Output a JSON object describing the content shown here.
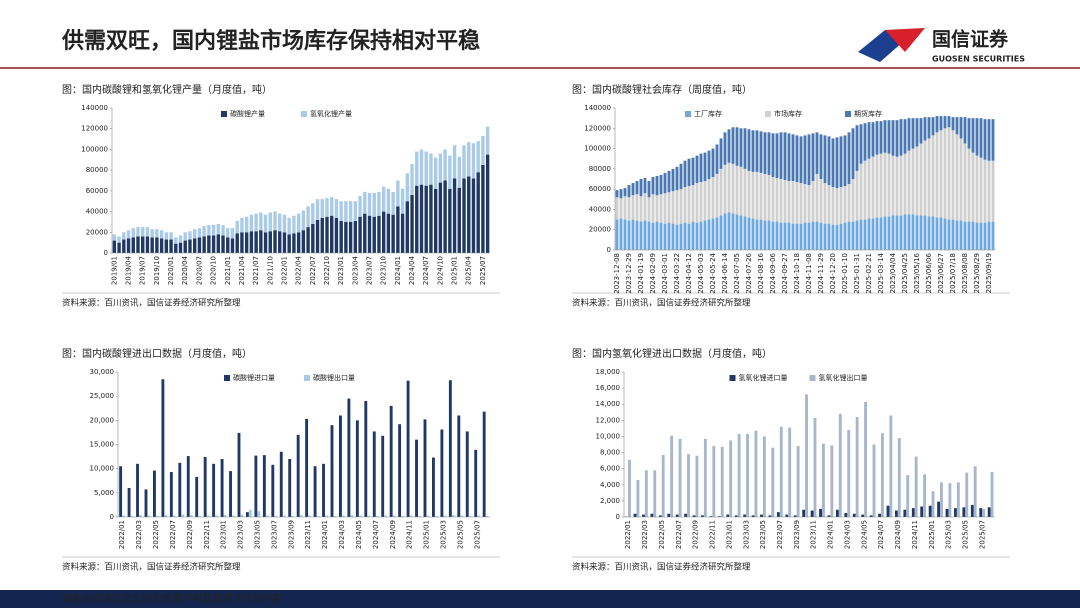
{
  "header": {
    "title": "供需双旺，国内锂盐市场库存保持相对平稳",
    "logo_cn": "国信证券",
    "logo_en": "GUOSEN SECURITIES"
  },
  "footer": {
    "disclaimer": "请务必阅读正文之后的免责声明及其项下所有内容"
  },
  "chart_data": [
    {
      "type": "bar",
      "stacked": true,
      "title": "图：国内碳酸锂和氢氧化锂产量（月度值，吨）",
      "source": "资料来源：百川资讯，国信证券经济研究所整理",
      "legend": "top",
      "categories": [
        "2019/01",
        null,
        null,
        "2019/04",
        null,
        null,
        "2019/07",
        null,
        null,
        "2019/10",
        null,
        null,
        "2020/01",
        null,
        null,
        "2020/04",
        null,
        null,
        "2020/07",
        null,
        null,
        "2020/10",
        null,
        null,
        "2021/01",
        null,
        null,
        "2021/04",
        null,
        null,
        "2021/07",
        null,
        null,
        "2021/10",
        null,
        null,
        "2022/01",
        null,
        null,
        "2022/04",
        null,
        null,
        "2022/07",
        null,
        null,
        "2022/10",
        null,
        null,
        "2023/01",
        null,
        null,
        "2023/04",
        null,
        null,
        "2023/07",
        null,
        null,
        "2023/10",
        null,
        null,
        "2024/01",
        null,
        null,
        "2024/04",
        null,
        null,
        "2024/07",
        null,
        null,
        "2024/10",
        null,
        null,
        "2025/01",
        null,
        null,
        "2025/04",
        null,
        null,
        "2025/07",
        null
      ],
      "series": [
        {
          "name": "碳酸锂产量",
          "color": "#1f3864",
          "values": [
            12000,
            10000,
            13000,
            14000,
            15000,
            16000,
            16000,
            16000,
            15000,
            15000,
            14000,
            13000,
            13000,
            9000,
            10000,
            12000,
            13000,
            14000,
            15000,
            16000,
            17000,
            17000,
            18000,
            17000,
            15000,
            14000,
            19000,
            20000,
            20000,
            21000,
            21000,
            22000,
            20000,
            21000,
            22000,
            21000,
            20000,
            18000,
            19000,
            20000,
            22000,
            25000,
            28000,
            32000,
            34000,
            35000,
            36000,
            34000,
            31000,
            30000,
            30000,
            31000,
            35000,
            38000,
            36000,
            35000,
            36000,
            40000,
            38000,
            37000,
            45000,
            38000,
            50000,
            56000,
            65000,
            66000,
            65000,
            66000,
            62000,
            68000,
            70000,
            62000,
            72000,
            63000,
            72000,
            74000,
            72000,
            78000,
            85000,
            95000
          ]
        },
        {
          "name": "氢氧化锂产量",
          "color": "#a9cbe8",
          "values": [
            6000,
            6000,
            7000,
            8000,
            9000,
            9000,
            9000,
            9000,
            8000,
            8000,
            8000,
            7000,
            7000,
            6000,
            7000,
            8000,
            8000,
            9000,
            9000,
            10000,
            10000,
            10000,
            10000,
            10000,
            9000,
            10000,
            12000,
            14000,
            15000,
            16000,
            17000,
            17000,
            17000,
            18000,
            18000,
            17000,
            17000,
            16000,
            17000,
            18000,
            19000,
            20000,
            20000,
            20000,
            18000,
            18000,
            18000,
            18000,
            19000,
            20000,
            20000,
            19000,
            20000,
            21000,
            22000,
            23000,
            23000,
            24000,
            24000,
            22000,
            25000,
            24000,
            27000,
            30000,
            33000,
            34000,
            33000,
            30000,
            30000,
            28000,
            30000,
            32000,
            32000,
            30000,
            32000,
            33000,
            34000,
            30000,
            28000,
            27000
          ]
        }
      ],
      "ylim": [
        0,
        140000
      ],
      "yticks": [
        0,
        20000,
        40000,
        60000,
        80000,
        100000,
        120000,
        140000
      ]
    },
    {
      "type": "bar",
      "stacked": true,
      "title": "图：国内碳酸锂社会库存（周度值，吨）",
      "source": "资料来源：百川资讯，国信证券经济研究所整理",
      "legend": "top",
      "categories": [
        "2023-12-08",
        null,
        null,
        "2023-12-29",
        null,
        null,
        "2024-01-19",
        null,
        null,
        "2024-02-09",
        null,
        null,
        "2024-03-01",
        null,
        null,
        "2024-03-22",
        null,
        null,
        "2024-04-12",
        null,
        null,
        "2024-05-03",
        null,
        null,
        "2024-05-24",
        null,
        null,
        "2024-06-14",
        null,
        null,
        "2024-07-05",
        null,
        null,
        "2024-07-26",
        null,
        null,
        "2024-08-16",
        null,
        null,
        "2024-09-06",
        null,
        null,
        "2024-09-27",
        null,
        null,
        "2024-10-18",
        null,
        null,
        "2024-11-08",
        null,
        null,
        "2024-11-29",
        null,
        null,
        "2024-12-20",
        null,
        null,
        "2025-01-10",
        null,
        null,
        "2025-01-31",
        null,
        null,
        "2025-02-21",
        null,
        null,
        "2025-03-14",
        null,
        null,
        "2025/04/04",
        null,
        null,
        "2025/04/25",
        null,
        null,
        "2025/05/16",
        null,
        null,
        "2025/06/06",
        null,
        null,
        "2025/06/27",
        null,
        null,
        "2025/07/18",
        null,
        null,
        "2025/08/08",
        null,
        null,
        "2025/08/29",
        null,
        null,
        "2025/09/19",
        null
      ],
      "series": [
        {
          "name": "工厂库存",
          "color": "#6fa8dc",
          "values": [
            30000,
            31000,
            30000,
            29000,
            30000,
            29000,
            28000,
            29000,
            28000,
            27000,
            28000,
            27000,
            26000,
            27000,
            26000,
            25000,
            26000,
            27000,
            26000,
            28000,
            27000,
            28000,
            29000,
            30000,
            31000,
            32000,
            34000,
            36000,
            37000,
            36000,
            35000,
            34000,
            33000,
            32000,
            31000,
            30000,
            30000,
            29000,
            29000,
            28000,
            28000,
            27000,
            27000,
            27000,
            26000,
            26000,
            26000,
            27000,
            27000,
            28000,
            28000,
            27000,
            26000,
            26000,
            25000,
            25000,
            26000,
            27000,
            28000,
            28000,
            29000,
            30000,
            30000,
            31000,
            31000,
            32000,
            32000,
            33000,
            33000,
            34000,
            34000,
            34000,
            35000,
            35000,
            35000,
            34000,
            34000,
            34000,
            33000,
            33000,
            32000,
            32000,
            31000,
            30000,
            30000,
            29000,
            29000,
            28000,
            28000,
            28000,
            27000,
            27000,
            27000,
            28000,
            28000
          ]
        },
        {
          "name": "市场库存",
          "color": "#cfcfcf",
          "values": [
            22000,
            20000,
            23000,
            23000,
            24000,
            26000,
            25000,
            27000,
            24000,
            28000,
            26000,
            28000,
            30000,
            30000,
            32000,
            34000,
            34000,
            35000,
            37000,
            36000,
            39000,
            39000,
            39000,
            40000,
            41000,
            43000,
            46000,
            48000,
            49000,
            49000,
            48000,
            48000,
            47000,
            46000,
            46000,
            47000,
            46000,
            46000,
            45000,
            44000,
            43000,
            43000,
            42000,
            41000,
            42000,
            41000,
            40000,
            38000,
            37000,
            40000,
            47000,
            43000,
            40000,
            38000,
            37000,
            36000,
            36000,
            36000,
            37000,
            42000,
            49000,
            55000,
            58000,
            59000,
            61000,
            62000,
            63000,
            63000,
            62000,
            59000,
            58000,
            59000,
            60000,
            63000,
            65000,
            68000,
            71000,
            74000,
            77000,
            80000,
            84000,
            86000,
            89000,
            91000,
            88000,
            85000,
            81000,
            77000,
            72000,
            68000,
            66000,
            64000,
            62000,
            60000,
            60000
          ]
        },
        {
          "name": "期货库存",
          "color": "#4a78b0",
          "values": [
            7000,
            9000,
            8000,
            12000,
            12000,
            13000,
            17000,
            15000,
            16000,
            17000,
            19000,
            19000,
            20000,
            21000,
            22000,
            23000,
            25000,
            26000,
            27000,
            27000,
            27000,
            28000,
            28000,
            28000,
            28000,
            29000,
            30000,
            32000,
            33000,
            36000,
            38000,
            38000,
            40000,
            41000,
            41000,
            41000,
            41000,
            41000,
            42000,
            43000,
            44000,
            46000,
            47000,
            47000,
            46000,
            46000,
            46000,
            48000,
            50000,
            47000,
            41000,
            44000,
            47000,
            48000,
            48000,
            50000,
            50000,
            50000,
            51000,
            50000,
            45000,
            39000,
            37000,
            36000,
            34000,
            33000,
            32000,
            32000,
            33000,
            35000,
            36000,
            36000,
            34000,
            32000,
            30000,
            28000,
            25000,
            23000,
            21000,
            18000,
            16000,
            14000,
            12000,
            11000,
            13000,
            17000,
            21000,
            26000,
            30000,
            34000,
            37000,
            39000,
            40000,
            41000,
            41000
          ]
        }
      ],
      "ylim": [
        0,
        140000
      ],
      "yticks": [
        0,
        20000,
        40000,
        60000,
        80000,
        100000,
        120000,
        140000
      ]
    },
    {
      "type": "bar",
      "stacked": false,
      "title": "图：国内碳酸锂进出口数据（月度值，吨）",
      "source": "资料来源：百川资讯，国信证券经济研究所整理",
      "legend": "top",
      "categories": [
        "2022/01",
        null,
        "2022/03",
        null,
        "2022/05",
        null,
        "2022/07",
        null,
        "2022/09",
        null,
        "2022/11",
        null,
        "2023/01",
        null,
        "2023/03",
        null,
        "2023/05",
        null,
        "2023/07",
        null,
        "2023/09",
        null,
        "2023/11",
        null,
        "2024/01",
        null,
        "2024/03",
        null,
        "2024/05",
        null,
        "2024/07",
        null,
        "2024/09",
        null,
        "2024/11",
        null,
        "2025/01",
        null,
        "2025/03",
        null,
        "2025/05",
        null,
        "2025/07",
        null
      ],
      "series": [
        {
          "name": "碳酸锂进口量",
          "color": "#1f3864",
          "values": [
            10500,
            6000,
            11000,
            5700,
            9600,
            28500,
            9300,
            11200,
            12600,
            8300,
            12400,
            11000,
            12000,
            9500,
            17400,
            1000,
            12700,
            12800,
            10800,
            13500,
            12000,
            17000,
            20300,
            10500,
            11000,
            19000,
            21000,
            24500,
            20000,
            24000,
            17700,
            16800,
            23000,
            19200,
            28200,
            16000,
            20200,
            12300,
            18100,
            28300,
            21000,
            17700,
            13900,
            21800
          ]
        },
        {
          "name": "碳酸锂出口量",
          "color": "#a9cbe8",
          "values": [
            300,
            200,
            400,
            300,
            200,
            400,
            300,
            500,
            400,
            200,
            300,
            300,
            400,
            300,
            500,
            1500,
            1200,
            300,
            200,
            300,
            200,
            400,
            300,
            200,
            300,
            200,
            300,
            400,
            300,
            300,
            200,
            300,
            300,
            200,
            300,
            200,
            300,
            200,
            300,
            400,
            300,
            200,
            300,
            200
          ]
        }
      ],
      "ylim": [
        0,
        30000
      ],
      "yticks": [
        0,
        {
          "value": 5000,
          "label": "5,000"
        },
        {
          "value": 10000,
          "label": "10,000"
        },
        {
          "value": 15000,
          "label": "15,000"
        },
        {
          "value": 20000,
          "label": "20,000"
        },
        {
          "value": 25000,
          "label": "25,000"
        },
        {
          "value": 30000,
          "label": "30,000"
        }
      ]
    },
    {
      "type": "bar",
      "stacked": false,
      "title": "图：国内氢氧化锂进出口数据（月度值，吨）",
      "source": "资料来源：百川资讯，国信证券经济研究所整理",
      "legend": "top",
      "categories": [
        "2022/01",
        null,
        "2022/03",
        null,
        "2022/05",
        null,
        "2022/07",
        null,
        "2022/09",
        null,
        "2022/11",
        null,
        "2023/01",
        null,
        "2023/03",
        null,
        "2023/05",
        null,
        "2023/07",
        null,
        "2023/09",
        null,
        "2023/11",
        null,
        "2024/01",
        null,
        "2024/03",
        null,
        "2024/05",
        null,
        "2024/07",
        null,
        "2024/09",
        null,
        "2024/11",
        null,
        "2025/01",
        null,
        "2025/03",
        null,
        "2025/05",
        null,
        "2025/07",
        null
      ],
      "series": [
        {
          "name": "氢氧化锂进口量",
          "color": "#1f3864",
          "values": [
            50,
            400,
            300,
            400,
            200,
            400,
            300,
            400,
            200,
            200,
            100,
            100,
            300,
            200,
            300,
            200,
            300,
            200,
            600,
            300,
            200,
            900,
            800,
            1000,
            200,
            900,
            500,
            400,
            300,
            200,
            400,
            1400,
            800,
            900,
            1100,
            1300,
            1400,
            1900,
            1000,
            1100,
            1200,
            1500,
            1100,
            1200
          ]
        },
        {
          "name": "氢氧化锂出口量",
          "color": "#a7b6cb",
          "values": [
            7100,
            4600,
            5800,
            5800,
            7700,
            10100,
            9700,
            7800,
            7600,
            9700,
            8800,
            8700,
            9500,
            10300,
            10300,
            10700,
            10000,
            8600,
            11200,
            11100,
            8800,
            15200,
            12300,
            9100,
            8900,
            12800,
            10800,
            12400,
            14300,
            9000,
            10400,
            12600,
            9800,
            5200,
            7500,
            5300,
            3200,
            4300,
            4200,
            4300,
            5500,
            6300,
            1000,
            5600
          ]
        }
      ],
      "ylim": [
        0,
        18000
      ],
      "yticks": [
        0,
        {
          "value": 2000,
          "label": "2,000"
        },
        {
          "value": 4000,
          "label": "4,000"
        },
        {
          "value": 6000,
          "label": "6,000"
        },
        {
          "value": 8000,
          "label": "8,000"
        },
        {
          "value": 10000,
          "label": "10,000"
        },
        {
          "value": 12000,
          "label": "12,000"
        },
        {
          "value": 14000,
          "label": "14,000"
        },
        {
          "value": 16000,
          "label": "16,000"
        },
        {
          "value": 18000,
          "label": "18,000"
        }
      ]
    }
  ]
}
